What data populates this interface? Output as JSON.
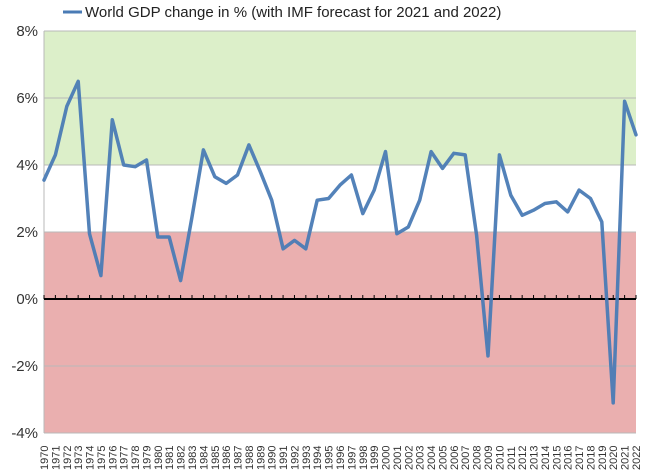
{
  "chart_data": {
    "type": "line",
    "title": "",
    "xlabel": "",
    "ylabel": "",
    "ylim": [
      -4,
      8
    ],
    "yticks": [
      -4,
      -2,
      0,
      2,
      4,
      6,
      8
    ],
    "ytick_labels": [
      "-4%",
      "-2%",
      "0%",
      "2%",
      "4%",
      "6%",
      "8%"
    ],
    "legend_position": "top",
    "grid": true,
    "colors": {
      "line": "#4a7bb5",
      "band_high": "#dcefc9",
      "band_low": "#eaafaf",
      "zero_line": "#000000",
      "grid": "#b8b8b8"
    },
    "bands": [
      {
        "from": 4,
        "to": 8,
        "color": "#dcefc9"
      },
      {
        "from": -4,
        "to": 2,
        "color": "#eaafaf"
      }
    ],
    "series": [
      {
        "name": "World GDP change in % (with IMF forecast for 2021 and 2022)",
        "x": [
          1970,
          1971,
          1972,
          1973,
          1974,
          1975,
          1976,
          1977,
          1978,
          1979,
          1980,
          1981,
          1982,
          1983,
          1984,
          1985,
          1986,
          1987,
          1988,
          1989,
          1990,
          1991,
          1992,
          1993,
          1994,
          1995,
          1996,
          1997,
          1998,
          1999,
          2000,
          2001,
          2002,
          2003,
          2004,
          2005,
          2006,
          2007,
          2008,
          2009,
          2010,
          2011,
          2012,
          2013,
          2014,
          2015,
          2016,
          2017,
          2018,
          2019,
          2020,
          2021,
          2022
        ],
        "values": [
          3.55,
          4.3,
          5.75,
          6.5,
          1.95,
          0.7,
          5.35,
          4.0,
          3.95,
          4.15,
          1.85,
          1.85,
          0.55,
          2.45,
          4.45,
          3.65,
          3.45,
          3.7,
          4.6,
          3.8,
          2.95,
          1.5,
          1.75,
          1.5,
          2.95,
          3.0,
          3.4,
          3.7,
          2.55,
          3.25,
          4.4,
          1.95,
          2.15,
          2.95,
          4.4,
          3.9,
          4.35,
          4.3,
          1.9,
          -1.7,
          4.3,
          3.1,
          2.5,
          2.65,
          2.85,
          2.9,
          2.6,
          3.25,
          3.0,
          2.3,
          -3.1,
          5.9,
          4.9
        ]
      }
    ]
  }
}
